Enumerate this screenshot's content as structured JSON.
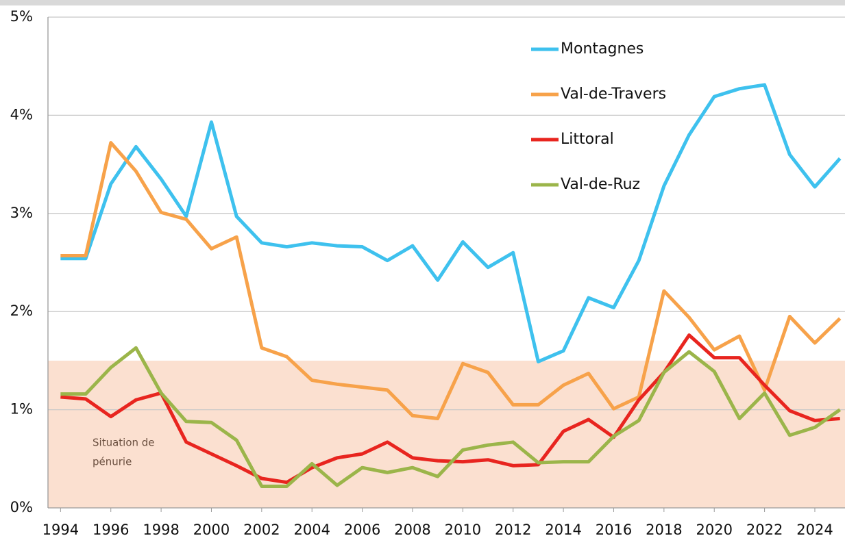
{
  "chart_data": {
    "type": "line",
    "x": [
      1994,
      1995,
      1996,
      1997,
      1998,
      1999,
      2000,
      2001,
      2002,
      2003,
      2004,
      2005,
      2006,
      2007,
      2008,
      2009,
      2010,
      2011,
      2012,
      2013,
      2014,
      2015,
      2016,
      2017,
      2018,
      2019,
      2020,
      2021,
      2022,
      2023,
      2024,
      2025
    ],
    "series": [
      {
        "name": "Montagnes",
        "color": "#3ec1ee",
        "values": [
          2.54,
          2.54,
          3.3,
          3.68,
          3.35,
          2.97,
          3.93,
          2.97,
          2.7,
          2.66,
          2.7,
          2.67,
          2.66,
          2.52,
          2.67,
          2.32,
          2.71,
          2.45,
          2.6,
          1.49,
          1.6,
          2.14,
          2.04,
          2.52,
          3.28,
          3.8,
          4.19,
          4.27,
          4.31,
          3.6,
          3.27,
          3.56
        ]
      },
      {
        "name": "Val-de-Travers",
        "color": "#f7a24a",
        "values": [
          2.57,
          2.57,
          3.72,
          3.43,
          3.01,
          2.94,
          2.64,
          2.76,
          1.63,
          1.54,
          1.3,
          1.26,
          1.23,
          1.2,
          0.94,
          0.91,
          1.47,
          1.38,
          1.05,
          1.05,
          1.25,
          1.37,
          1.01,
          1.13,
          2.21,
          1.94,
          1.61,
          1.75,
          1.2,
          1.95,
          1.68,
          1.93
        ]
      },
      {
        "name": "Littoral",
        "color": "#e8251f",
        "values": [
          1.13,
          1.11,
          0.93,
          1.1,
          1.17,
          0.67,
          0.55,
          0.43,
          0.3,
          0.26,
          0.41,
          0.51,
          0.55,
          0.67,
          0.51,
          0.48,
          0.47,
          0.49,
          0.43,
          0.44,
          0.78,
          0.9,
          0.72,
          1.1,
          1.38,
          1.76,
          1.53,
          1.53,
          1.25,
          0.99,
          0.89,
          0.91
        ]
      },
      {
        "name": "Val-de-Ruz",
        "color": "#9bb54a",
        "values": [
          1.16,
          1.16,
          1.43,
          1.63,
          1.17,
          0.88,
          0.87,
          0.69,
          0.22,
          0.22,
          0.45,
          0.23,
          0.41,
          0.36,
          0.41,
          0.32,
          0.59,
          0.64,
          0.67,
          0.46,
          0.47,
          0.47,
          0.73,
          0.89,
          1.38,
          1.59,
          1.39,
          0.91,
          1.17,
          0.74,
          0.82,
          1.0
        ]
      }
    ],
    "xlim": [
      1993.5,
      2025.2
    ],
    "xticks": [
      1994,
      1996,
      1998,
      2000,
      2002,
      2004,
      2006,
      2008,
      2010,
      2012,
      2014,
      2016,
      2018,
      2020,
      2022,
      2024
    ],
    "ylim": [
      0,
      5
    ],
    "yticks": [
      {
        "value": 0,
        "label": "0%"
      },
      {
        "value": 1,
        "label": "1%"
      },
      {
        "value": 2,
        "label": "2%"
      },
      {
        "value": 3,
        "label": "3%"
      },
      {
        "value": 4,
        "label": "4%"
      },
      {
        "value": 5,
        "label": "5%"
      }
    ],
    "grid": true,
    "legend": "upper right",
    "band": {
      "range": [
        0,
        1.5
      ],
      "color": "#fbe0d0",
      "label": [
        "Situation de",
        "pénurie"
      ]
    }
  }
}
